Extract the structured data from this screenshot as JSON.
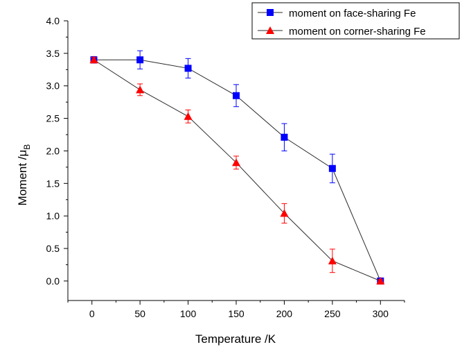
{
  "chart_data": {
    "type": "line",
    "title": "",
    "xlabel": "Temperature /K",
    "ylabel": "Moment /μ",
    "ylabel_sub": "B",
    "xlim": [
      -25,
      325
    ],
    "ylim": [
      -0.3,
      4.0
    ],
    "xticks": [
      0,
      50,
      100,
      150,
      200,
      250,
      300
    ],
    "yticks": [
      0.0,
      0.5,
      1.0,
      1.5,
      2.0,
      2.5,
      3.0,
      3.5,
      4.0
    ],
    "xtick_labels": [
      "0",
      "50",
      "100",
      "150",
      "200",
      "250",
      "300"
    ],
    "ytick_labels": [
      "0.0",
      "0.5",
      "1.0",
      "1.5",
      "2.0",
      "2.5",
      "3.0",
      "3.5",
      "4.0"
    ],
    "grid": false,
    "legend_position": "top-right",
    "series": [
      {
        "name": "moment on face-sharing Fe",
        "marker": "square",
        "color": "#0000ff",
        "x": [
          2,
          50,
          100,
          150,
          200,
          250,
          300
        ],
        "y": [
          3.4,
          3.4,
          3.27,
          2.85,
          2.21,
          1.73,
          0.0
        ],
        "err": [
          0.05,
          0.14,
          0.15,
          0.17,
          0.21,
          0.22,
          0.02
        ]
      },
      {
        "name": "moment on corner-sharing Fe",
        "marker": "triangle",
        "color": "#ff0000",
        "x": [
          2,
          50,
          100,
          150,
          200,
          250,
          300
        ],
        "y": [
          3.4,
          2.94,
          2.53,
          1.82,
          1.04,
          0.31,
          0.0
        ],
        "err": [
          0.04,
          0.09,
          0.1,
          0.1,
          0.15,
          0.18,
          0.02
        ]
      }
    ]
  }
}
